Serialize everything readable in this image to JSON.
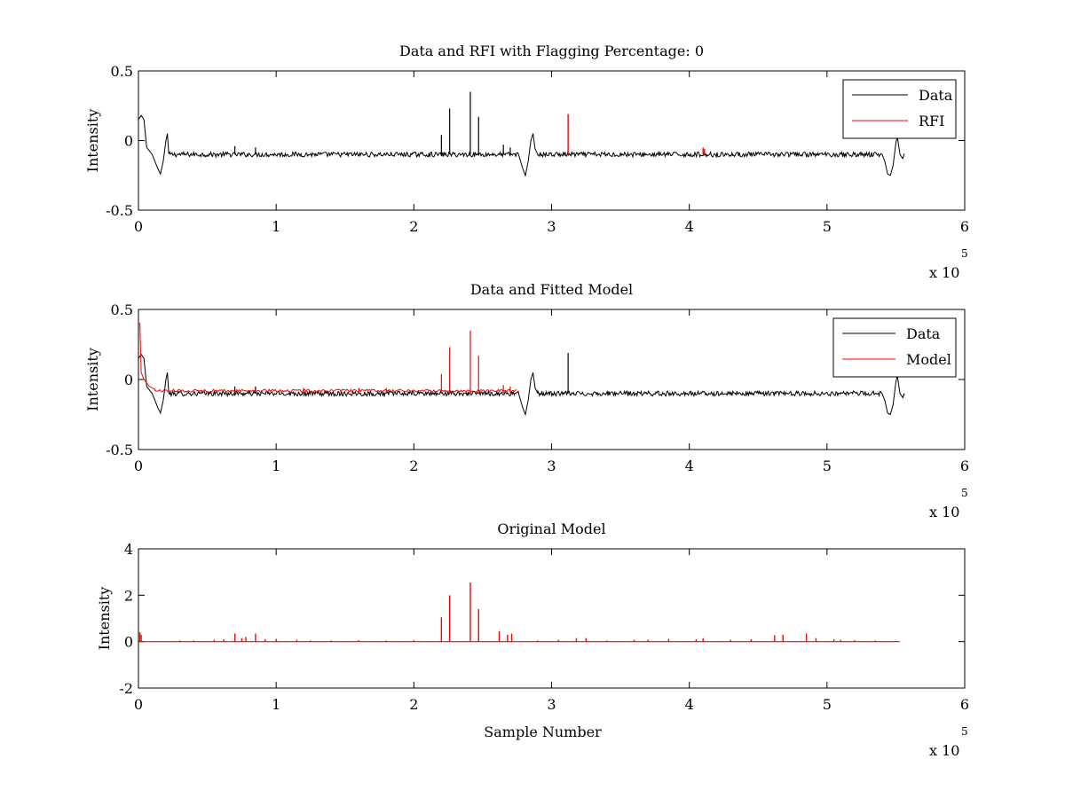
{
  "chart_data": [
    {
      "type": "line",
      "title": "Data and RFI with Flagging Percentage: 0",
      "xlabel": "",
      "ylabel": "Intensity",
      "xlim": [
        0,
        600000
      ],
      "ylim": [
        -0.5,
        0.5
      ],
      "x_ticks": [
        0,
        100000,
        200000,
        300000,
        400000,
        500000,
        600000
      ],
      "x_tick_labels": [
        "0",
        "1",
        "2",
        "3",
        "4",
        "5",
        "6"
      ],
      "y_ticks": [
        -0.5,
        0,
        0.5
      ],
      "y_tick_labels": [
        "-0.5",
        "0",
        "0.5"
      ],
      "x_multiplier_base": "x 10",
      "x_multiplier_exp": "5",
      "legend": "top-right",
      "grid": false,
      "baseline": -0.1,
      "series": [
        {
          "name": "Data",
          "color": "#000000",
          "kind": "data",
          "dips": [
            {
              "start": 0,
              "end": 22000,
              "points": [
                [
                  0,
                  0.15
                ],
                [
                  2000,
                  0.18
                ],
                [
                  4000,
                  0.15
                ],
                [
                  6000,
                  -0.05
                ],
                [
                  10000,
                  -0.1
                ],
                [
                  14000,
                  -0.2
                ],
                [
                  16000,
                  -0.24
                ],
                [
                  18000,
                  -0.15
                ],
                [
                  20000,
                  0.0
                ],
                [
                  21000,
                  0.05
                ],
                [
                  22000,
                  -0.09
                ]
              ]
            },
            {
              "start": 276000,
              "end": 290000,
              "points": [
                [
                  276000,
                  -0.1
                ],
                [
                  279000,
                  -0.2
                ],
                [
                  281000,
                  -0.25
                ],
                [
                  283000,
                  -0.15
                ],
                [
                  285000,
                  0.0
                ],
                [
                  286500,
                  0.05
                ],
                [
                  288000,
                  -0.06
                ],
                [
                  290000,
                  -0.1
                ]
              ]
            },
            {
              "start": 540000,
              "end": 556000,
              "points": [
                [
                  540000,
                  -0.1
                ],
                [
                  542000,
                  -0.15
                ],
                [
                  544000,
                  -0.24
                ],
                [
                  546000,
                  -0.25
                ],
                [
                  548000,
                  -0.18
                ],
                [
                  550000,
                  -0.02
                ],
                [
                  551000,
                  0.03
                ],
                [
                  553000,
                  -0.1
                ],
                [
                  555000,
                  -0.13
                ],
                [
                  556000,
                  -0.1
                ]
              ]
            }
          ],
          "spikes": [
            [
              220000,
              0.04
            ],
            [
              226000,
              0.23
            ],
            [
              241000,
              0.35
            ],
            [
              247000,
              0.17
            ],
            [
              265000,
              -0.03
            ],
            [
              270000,
              -0.05
            ],
            [
              70000,
              -0.04
            ],
            [
              85000,
              -0.05
            ]
          ],
          "x_end": 556000
        },
        {
          "name": "RFI",
          "color": "#ff0000",
          "kind": "spikes",
          "spikes": [
            [
              312000,
              0.19
            ],
            [
              410000,
              -0.05
            ],
            [
              411000,
              -0.06
            ]
          ]
        }
      ]
    },
    {
      "type": "line",
      "title": "Data and Fitted Model",
      "xlabel": "",
      "ylabel": "Intensity",
      "xlim": [
        0,
        600000
      ],
      "ylim": [
        -0.5,
        0.5
      ],
      "x_ticks": [
        0,
        100000,
        200000,
        300000,
        400000,
        500000,
        600000
      ],
      "x_tick_labels": [
        "0",
        "1",
        "2",
        "3",
        "4",
        "5",
        "6"
      ],
      "y_ticks": [
        -0.5,
        0,
        0.5
      ],
      "y_tick_labels": [
        "-0.5",
        "0",
        "0.5"
      ],
      "x_multiplier_base": "x 10",
      "x_multiplier_exp": "5",
      "legend": "top-right",
      "grid": false,
      "baseline": -0.1,
      "series": [
        {
          "name": "Data",
          "color": "#000000",
          "kind": "data",
          "dips": [
            {
              "start": 0,
              "end": 22000,
              "points": [
                [
                  0,
                  0.15
                ],
                [
                  2000,
                  0.18
                ],
                [
                  4000,
                  0.15
                ],
                [
                  6000,
                  -0.05
                ],
                [
                  10000,
                  -0.1
                ],
                [
                  14000,
                  -0.2
                ],
                [
                  16000,
                  -0.24
                ],
                [
                  18000,
                  -0.15
                ],
                [
                  20000,
                  0.0
                ],
                [
                  21000,
                  0.05
                ],
                [
                  22000,
                  -0.09
                ]
              ]
            },
            {
              "start": 276000,
              "end": 290000,
              "points": [
                [
                  276000,
                  -0.1
                ],
                [
                  279000,
                  -0.2
                ],
                [
                  281000,
                  -0.25
                ],
                [
                  283000,
                  -0.15
                ],
                [
                  285000,
                  0.0
                ],
                [
                  286500,
                  0.05
                ],
                [
                  288000,
                  -0.06
                ],
                [
                  290000,
                  -0.1
                ]
              ]
            },
            {
              "start": 540000,
              "end": 556000,
              "points": [
                [
                  540000,
                  -0.1
                ],
                [
                  542000,
                  -0.15
                ],
                [
                  544000,
                  -0.24
                ],
                [
                  546000,
                  -0.25
                ],
                [
                  548000,
                  -0.18
                ],
                [
                  550000,
                  -0.02
                ],
                [
                  551000,
                  0.03
                ],
                [
                  553000,
                  -0.1
                ],
                [
                  555000,
                  -0.13
                ],
                [
                  556000,
                  -0.1
                ]
              ]
            }
          ],
          "spikes": [
            [
              312000,
              0.19
            ],
            [
              70000,
              -0.05
            ],
            [
              85000,
              -0.05
            ]
          ],
          "x_end": 556000
        },
        {
          "name": "Model",
          "color": "#ff0000",
          "kind": "model",
          "start_points": [
            [
              0,
              0.4
            ],
            [
              1000,
              0.4
            ],
            [
              2000,
              0.05
            ],
            [
              4000,
              0.0
            ],
            [
              8000,
              -0.05
            ],
            [
              12000,
              -0.07
            ]
          ],
          "spikes": [
            [
              220000,
              0.04
            ],
            [
              226000,
              0.23
            ],
            [
              241000,
              0.35
            ],
            [
              247000,
              0.17
            ],
            [
              265000,
              -0.04
            ],
            [
              270000,
              -0.05
            ],
            [
              160000,
              -0.06
            ],
            [
              180000,
              -0.06
            ],
            [
              120000,
              -0.06
            ]
          ],
          "x_start": 12000,
          "x_end": 275000
        }
      ]
    },
    {
      "type": "line",
      "title": "Original Model",
      "xlabel": "Sample Number",
      "ylabel": "Intensity",
      "xlim": [
        0,
        600000
      ],
      "ylim": [
        -2,
        4
      ],
      "x_ticks": [
        0,
        100000,
        200000,
        300000,
        400000,
        500000,
        600000
      ],
      "x_tick_labels": [
        "0",
        "1",
        "2",
        "3",
        "4",
        "5",
        "6"
      ],
      "y_ticks": [
        -2,
        0,
        2,
        4
      ],
      "y_tick_labels": [
        "-2",
        "0",
        "2",
        "4"
      ],
      "x_multiplier_base": "x 10",
      "x_multiplier_exp": "5",
      "grid": false,
      "baseline": 0,
      "series": [
        {
          "color": "#ff0000",
          "kind": "spikes",
          "spikes": [
            [
              1000,
              0.4
            ],
            [
              2000,
              0.3
            ],
            [
              30000,
              0.05
            ],
            [
              40000,
              0.05
            ],
            [
              55000,
              0.08
            ],
            [
              62000,
              0.1
            ],
            [
              70000,
              0.35
            ],
            [
              75000,
              0.15
            ],
            [
              78000,
              0.2
            ],
            [
              85000,
              0.35
            ],
            [
              92000,
              0.1
            ],
            [
              100000,
              0.12
            ],
            [
              115000,
              0.08
            ],
            [
              125000,
              0.05
            ],
            [
              140000,
              0.05
            ],
            [
              160000,
              0.06
            ],
            [
              180000,
              0.05
            ],
            [
              200000,
              0.06
            ],
            [
              220000,
              1.05
            ],
            [
              226000,
              2.0
            ],
            [
              241000,
              2.55
            ],
            [
              247000,
              1.4
            ],
            [
              262000,
              0.45
            ],
            [
              268000,
              0.3
            ],
            [
              271000,
              0.35
            ],
            [
              290000,
              0.05
            ],
            [
              305000,
              0.08
            ],
            [
              318000,
              0.15
            ],
            [
              325000,
              0.15
            ],
            [
              340000,
              0.05
            ],
            [
              360000,
              0.08
            ],
            [
              370000,
              0.08
            ],
            [
              385000,
              0.12
            ],
            [
              405000,
              0.1
            ],
            [
              410000,
              0.15
            ],
            [
              430000,
              0.08
            ],
            [
              445000,
              0.1
            ],
            [
              462000,
              0.28
            ],
            [
              468000,
              0.3
            ],
            [
              485000,
              0.35
            ],
            [
              492000,
              0.15
            ],
            [
              505000,
              0.1
            ],
            [
              510000,
              0.08
            ],
            [
              520000,
              0.06
            ],
            [
              535000,
              0.05
            ]
          ],
          "x_end": 553000
        }
      ]
    }
  ]
}
